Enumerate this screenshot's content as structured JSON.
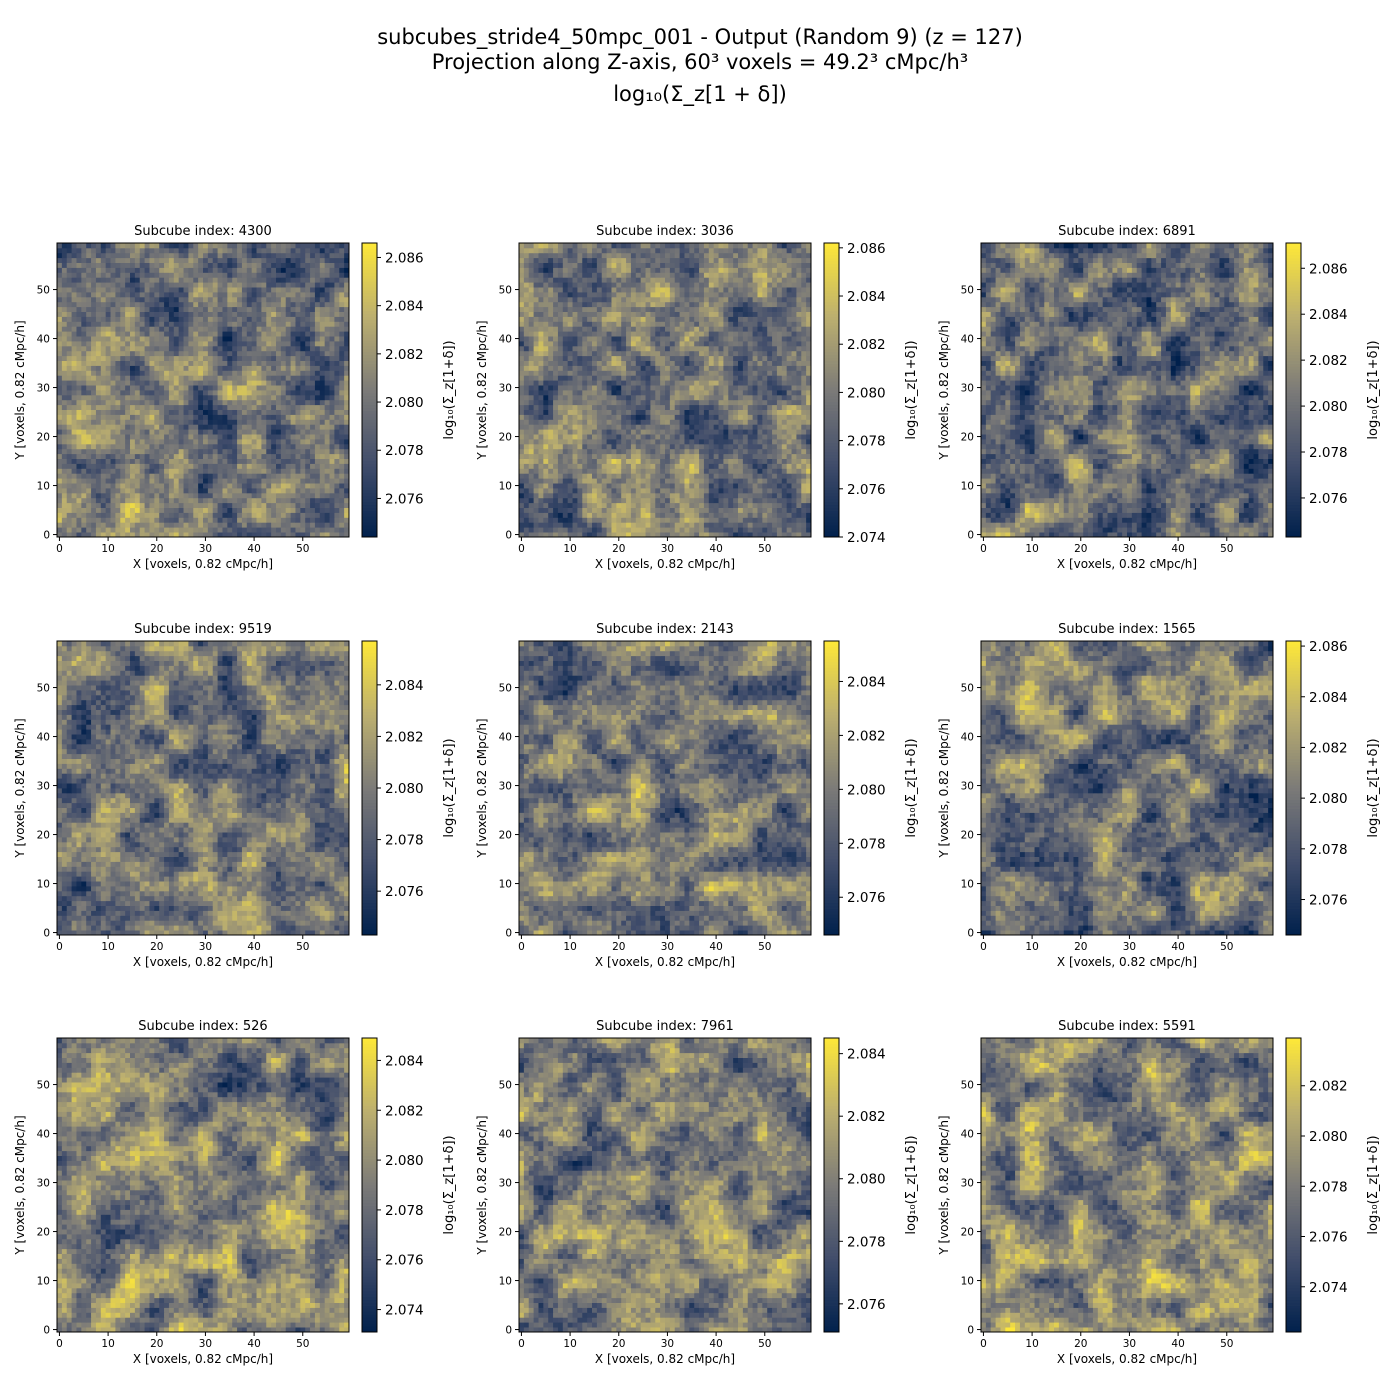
{
  "figure": {
    "title_line1": "subcubes_stride4_50mpc_001 - Output (Random 9) (z = 127)",
    "title_line2": "Projection along Z-axis, 60³ voxels = 49.2³ cMpc/h³",
    "title_line3": "log₁₀(Σ_z[1 + δ])"
  },
  "axes": {
    "xlabel": "X [voxels, 0.82 cMpc/h]",
    "ylabel": "Y [voxels, 0.82 cMpc/h]",
    "colorbar_label": "log₁₀(Σ_z[1+δ])",
    "x_ticks": [
      "0",
      "10",
      "20",
      "30",
      "40",
      "50"
    ],
    "y_ticks": [
      "0",
      "10",
      "20",
      "30",
      "40",
      "50"
    ],
    "xlim": [
      0,
      60
    ],
    "ylim": [
      0,
      60
    ],
    "colormap": "cividis",
    "colormap_stops": [
      "#00204c",
      "#414d6b",
      "#7c7b78",
      "#bcaf6f",
      "#fee838"
    ]
  },
  "chart_data": [
    {
      "type": "heatmap",
      "title": "Subcube index: 4300",
      "vmin": 2.0744,
      "vmax": 2.0866,
      "colorbar_ticks": [
        "2.076",
        "2.078",
        "2.080",
        "2.082",
        "2.084",
        "2.086"
      ],
      "seed": 4300,
      "trend": [
        0.7,
        0.25,
        0.35,
        0.2
      ]
    },
    {
      "type": "heatmap",
      "title": "Subcube index: 3036",
      "vmin": 2.074,
      "vmax": 2.0862,
      "colorbar_ticks": [
        "2.074",
        "2.076",
        "2.078",
        "2.080",
        "2.082",
        "2.084",
        "2.086"
      ],
      "seed": 3036,
      "trend": [
        0.35,
        0.5,
        0.45,
        0.4
      ]
    },
    {
      "type": "heatmap",
      "title": "Subcube index: 6891",
      "vmin": 2.0743,
      "vmax": 2.0871,
      "colorbar_ticks": [
        "2.076",
        "2.078",
        "2.080",
        "2.082",
        "2.084",
        "2.086"
      ],
      "seed": 6891,
      "trend": [
        0.55,
        0.3,
        0.35,
        0.25
      ]
    },
    {
      "type": "heatmap",
      "title": "Subcube index: 9519",
      "vmin": 2.0743,
      "vmax": 2.0857,
      "colorbar_ticks": [
        "2.076",
        "2.078",
        "2.080",
        "2.082",
        "2.084"
      ],
      "seed": 9519,
      "trend": [
        0.3,
        0.6,
        0.45,
        0.4
      ]
    },
    {
      "type": "heatmap",
      "title": "Subcube index: 2143",
      "vmin": 2.0746,
      "vmax": 2.0855,
      "colorbar_ticks": [
        "2.076",
        "2.078",
        "2.080",
        "2.082",
        "2.084"
      ],
      "seed": 2143,
      "trend": [
        0.65,
        0.45,
        0.4,
        0.35
      ]
    },
    {
      "type": "heatmap",
      "title": "Subcube index: 1565",
      "vmin": 2.0746,
      "vmax": 2.0862,
      "colorbar_ticks": [
        "2.076",
        "2.078",
        "2.080",
        "2.082",
        "2.084",
        "2.086"
      ],
      "seed": 1565,
      "trend": [
        0.3,
        0.3,
        0.65,
        0.45
      ]
    },
    {
      "type": "heatmap",
      "title": "Subcube index: 526",
      "vmin": 2.0731,
      "vmax": 2.0849,
      "colorbar_ticks": [
        "2.074",
        "2.076",
        "2.078",
        "2.080",
        "2.082",
        "2.084"
      ],
      "seed": 526,
      "trend": [
        0.65,
        0.6,
        0.45,
        0.4
      ]
    },
    {
      "type": "heatmap",
      "title": "Subcube index: 7961",
      "vmin": 2.0751,
      "vmax": 2.0845,
      "colorbar_ticks": [
        "2.076",
        "2.078",
        "2.080",
        "2.082",
        "2.084"
      ],
      "seed": 7961,
      "trend": [
        0.4,
        0.55,
        0.55,
        0.45
      ]
    },
    {
      "type": "heatmap",
      "title": "Subcube index: 5591",
      "vmin": 2.0722,
      "vmax": 2.0839,
      "colorbar_ticks": [
        "2.074",
        "2.076",
        "2.078",
        "2.080",
        "2.082"
      ],
      "seed": 5591,
      "trend": [
        0.65,
        0.6,
        0.5,
        0.45
      ]
    }
  ]
}
